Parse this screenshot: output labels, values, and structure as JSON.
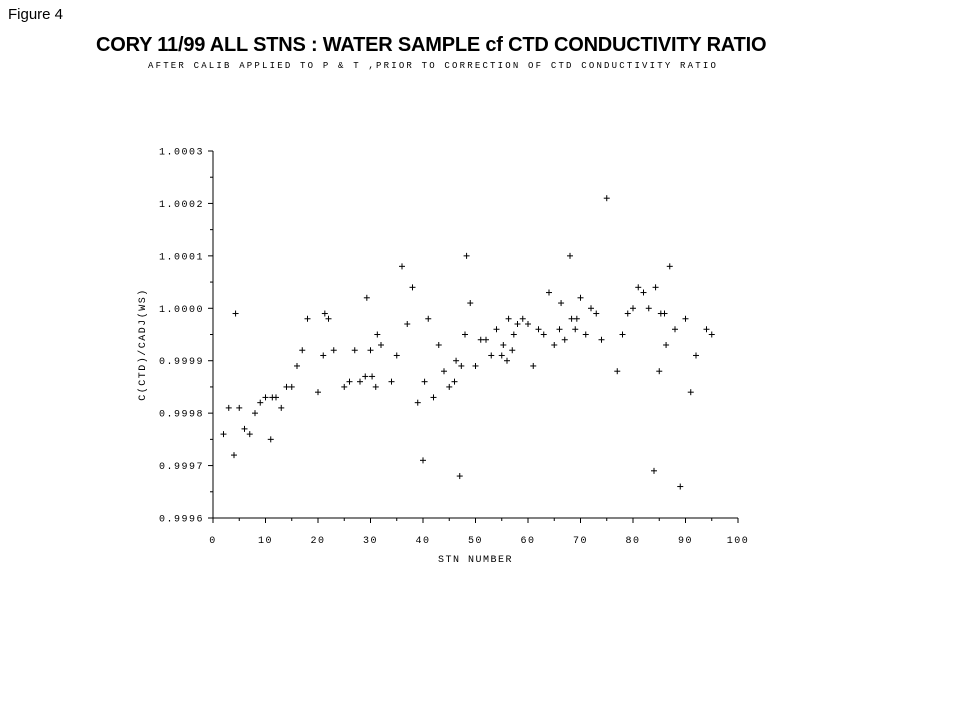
{
  "figure_label": "Figure 4",
  "title": "CORY 11/99 ALL STNS : WATER SAMPLE cf CTD CONDUCTIVITY RATIO",
  "subtitle": "AFTER CALIB APPLIED TO P & T ,PRIOR TO CORRECTION OF CTD CONDUCTIVITY RATIO",
  "chart_data": {
    "type": "scatter",
    "title": "CORY 11/99 ALL STNS : WATER SAMPLE cf CTD CONDUCTIVITY RATIO",
    "subtitle": "AFTER CALIB APPLIED TO P & T ,PRIOR TO CORRECTION OF CTD CONDUCTIVITY RATIO",
    "xlabel": "STN NUMBER",
    "ylabel": "C(CTD)/CADJ(WS)",
    "xlim": [
      0,
      100
    ],
    "ylim": [
      0.9996,
      1.0003
    ],
    "x_ticks": [
      "0",
      "10",
      "20",
      "30",
      "40",
      "50",
      "60",
      "70",
      "80",
      "90",
      "100"
    ],
    "y_ticks": [
      "0.9996",
      "0.9997",
      "0.9998",
      "0.9999",
      "1.0000",
      "1.0001",
      "1.0002",
      "1.0003"
    ],
    "marker": "+",
    "grid": false,
    "series": [
      {
        "points": [
          [
            2,
            0.99976
          ],
          [
            3,
            0.99981
          ],
          [
            4,
            0.99972
          ],
          [
            4.3,
            0.99999
          ],
          [
            5,
            0.99981
          ],
          [
            6,
            0.99977
          ],
          [
            7,
            0.99976
          ],
          [
            8,
            0.9998
          ],
          [
            9,
            0.99982
          ],
          [
            10,
            0.99983
          ],
          [
            11,
            0.99975
          ],
          [
            11.3,
            0.99983
          ],
          [
            12,
            0.99983
          ],
          [
            13,
            0.99981
          ],
          [
            14,
            0.99985
          ],
          [
            15,
            0.99985
          ],
          [
            16,
            0.99989
          ],
          [
            17,
            0.99992
          ],
          [
            18,
            0.99998
          ],
          [
            20,
            0.99984
          ],
          [
            21,
            0.99991
          ],
          [
            21.3,
            0.99999
          ],
          [
            22,
            0.99998
          ],
          [
            23,
            0.99992
          ],
          [
            25,
            0.99985
          ],
          [
            26,
            0.99986
          ],
          [
            27,
            0.99992
          ],
          [
            28,
            0.99986
          ],
          [
            29,
            0.99987
          ],
          [
            29.3,
            1.00002
          ],
          [
            30,
            0.99992
          ],
          [
            30.3,
            0.99987
          ],
          [
            31,
            0.99985
          ],
          [
            31.3,
            0.99995
          ],
          [
            32,
            0.99993
          ],
          [
            34,
            0.99986
          ],
          [
            35,
            0.99991
          ],
          [
            36,
            1.00008
          ],
          [
            37,
            0.99997
          ],
          [
            38,
            1.00004
          ],
          [
            39,
            0.99982
          ],
          [
            40,
            0.99971
          ],
          [
            40.3,
            0.99986
          ],
          [
            41,
            0.99998
          ],
          [
            42,
            0.99983
          ],
          [
            43,
            0.99993
          ],
          [
            44,
            0.99988
          ],
          [
            45,
            0.99985
          ],
          [
            46,
            0.99986
          ],
          [
            46.3,
            0.9999
          ],
          [
            47,
            0.99968
          ],
          [
            47.3,
            0.99989
          ],
          [
            48,
            0.99995
          ],
          [
            48.3,
            1.0001
          ],
          [
            49,
            1.00001
          ],
          [
            50,
            0.99989
          ],
          [
            51,
            0.99994
          ],
          [
            52,
            0.99994
          ],
          [
            53,
            0.99991
          ],
          [
            54,
            0.99996
          ],
          [
            55,
            0.99991
          ],
          [
            55.3,
            0.99993
          ],
          [
            56,
            0.9999
          ],
          [
            56.3,
            0.99998
          ],
          [
            57,
            0.99992
          ],
          [
            57.3,
            0.99995
          ],
          [
            58,
            0.99997
          ],
          [
            59,
            0.99998
          ],
          [
            60,
            0.99997
          ],
          [
            61,
            0.99989
          ],
          [
            62,
            0.99996
          ],
          [
            63,
            0.99995
          ],
          [
            64,
            1.00003
          ],
          [
            65,
            0.99993
          ],
          [
            66,
            0.99996
          ],
          [
            66.3,
            1.00001
          ],
          [
            67,
            0.99994
          ],
          [
            68,
            1.0001
          ],
          [
            68.3,
            0.99998
          ],
          [
            69,
            0.99996
          ],
          [
            69.3,
            0.99998
          ],
          [
            70,
            1.00002
          ],
          [
            71,
            0.99995
          ],
          [
            72,
            1.0
          ],
          [
            73,
            0.99999
          ],
          [
            74,
            0.99994
          ],
          [
            75,
            1.00021
          ],
          [
            77,
            0.99988
          ],
          [
            78,
            0.99995
          ],
          [
            79,
            0.99999
          ],
          [
            80,
            1.0
          ],
          [
            81,
            1.00004
          ],
          [
            82,
            1.00003
          ],
          [
            83,
            1.0
          ],
          [
            84,
            0.99969
          ],
          [
            84.3,
            1.00004
          ],
          [
            85,
            0.99988
          ],
          [
            85.3,
            0.99999
          ],
          [
            86,
            0.99999
          ],
          [
            86.3,
            0.99993
          ],
          [
            87,
            1.00008
          ],
          [
            88,
            0.99996
          ],
          [
            89,
            0.99966
          ],
          [
            90,
            0.99998
          ],
          [
            91,
            0.99984
          ],
          [
            92,
            0.99991
          ],
          [
            94,
            0.99996
          ],
          [
            95,
            0.99995
          ]
        ]
      }
    ]
  }
}
